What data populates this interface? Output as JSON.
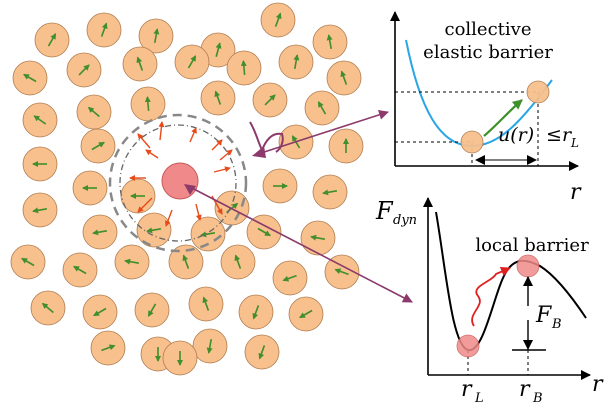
{
  "labels": {
    "collective_line1": "collective",
    "collective_line2": "elastic barrier",
    "u_of_r": "u(r)",
    "le": "≤",
    "r_L_inline": "r",
    "r_L_inline_sub": "L",
    "r_axis_top": "r",
    "F_dyn": "F",
    "F_dyn_sub": "dyn",
    "local_barrier": "local barrier",
    "F_B": "F",
    "F_B_sub": "B",
    "r_L": "r",
    "r_L_sub": "L",
    "r_B": "r",
    "r_B_sub": "B",
    "r_axis_bottom": "r"
  },
  "colors": {
    "particle_fill": "#f7c08d",
    "particle_stroke": "#b07c50",
    "arrow_green": "#3f8f2a",
    "arrow_red": "#e84a1a",
    "central_particle": "#f08a8a",
    "blue_curve": "#2aa6e6",
    "pointer_purple": "#8b3a6b",
    "dashed_circle": "#888888"
  }
}
